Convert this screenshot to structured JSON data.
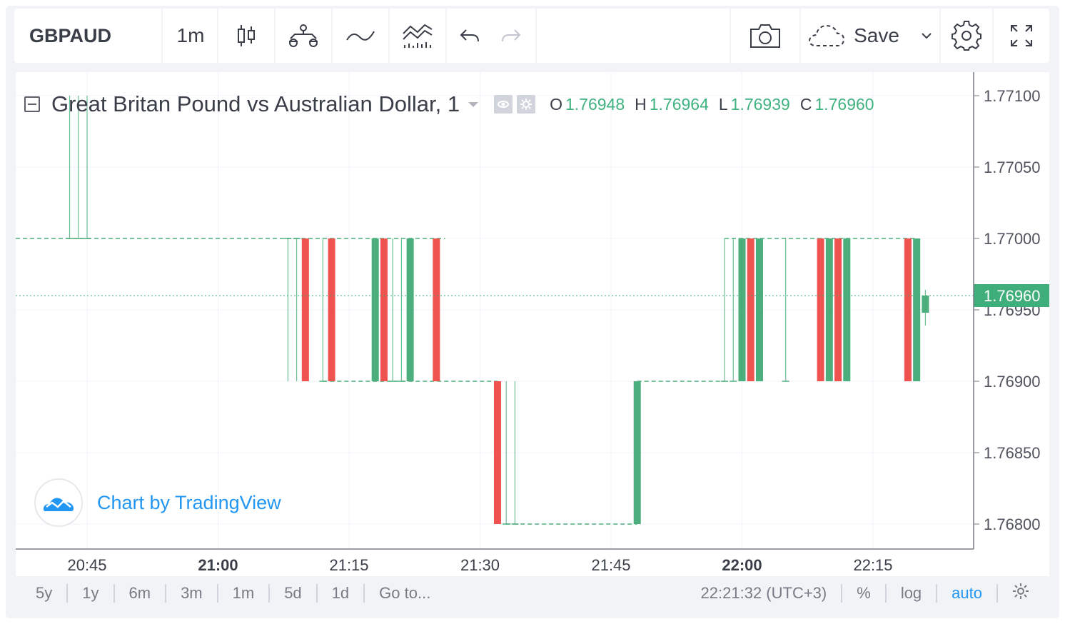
{
  "toolbar": {
    "symbol": "GBPAUD",
    "interval": "1m",
    "save_label": "Save",
    "icons": [
      "bar-style-icon",
      "compare-icon",
      "indicators-icon",
      "templates-icon",
      "undo-icon",
      "redo-icon",
      "snapshot-icon",
      "cloud-save-icon",
      "chevron-down-icon",
      "settings-icon",
      "fullscreen-icon"
    ]
  },
  "legend": {
    "title": "Great Britan Pound vs Australian Dollar, 1",
    "o_label": "O",
    "o_value": "1.76948",
    "h_label": "H",
    "h_value": "1.76964",
    "l_label": "L",
    "l_value": "1.76939",
    "c_label": "C",
    "c_value": "1.76960"
  },
  "watermark": {
    "text": "Chart by TradingView"
  },
  "bottom_bar": {
    "ranges": [
      "5y",
      "1y",
      "6m",
      "3m",
      "1m",
      "5d",
      "1d"
    ],
    "goto": "Go to...",
    "time": "22:21:32 (UTC+3)",
    "percent": "%",
    "log": "log",
    "auto": "auto"
  },
  "colors": {
    "up": "#4cae7c",
    "down": "#ef5350",
    "accent": "#2196f3",
    "price_tag": "#3fae7a"
  },
  "chart_data": {
    "type": "candlestick",
    "title": "Great Britan Pound vs Australian Dollar, 1",
    "ylim": [
      1.76775,
      1.77118
    ],
    "y_ticks": [
      "1.77100",
      "1.77050",
      "1.77000",
      "1.76950",
      "1.76900",
      "1.76850",
      "1.76800"
    ],
    "x_ticks": [
      {
        "label": "20:45",
        "bold": false,
        "t": 20.75
      },
      {
        "label": "21:00",
        "bold": true,
        "t": 21.0
      },
      {
        "label": "21:15",
        "bold": false,
        "t": 21.25
      },
      {
        "label": "21:30",
        "bold": false,
        "t": 21.5
      },
      {
        "label": "21:45",
        "bold": false,
        "t": 21.75
      },
      {
        "label": "22:00",
        "bold": true,
        "t": 22.0
      },
      {
        "label": "22:15",
        "bold": false,
        "t": 22.25
      }
    ],
    "last_price": "1.76960",
    "candles": [
      {
        "time": "20:43",
        "open": 1.77,
        "high": 1.771,
        "low": 1.77,
        "close": 1.77
      },
      {
        "time": "20:44",
        "open": 1.77,
        "high": 1.771,
        "low": 1.77,
        "close": 1.77
      },
      {
        "time": "20:45",
        "open": 1.77,
        "high": 1.771,
        "low": 1.77,
        "close": 1.77
      },
      {
        "time": "21:08",
        "open": 1.77,
        "high": 1.77,
        "low": 1.769,
        "close": 1.77
      },
      {
        "time": "21:09",
        "open": 1.77,
        "high": 1.77,
        "low": 1.769,
        "close": 1.77
      },
      {
        "time": "21:10",
        "open": 1.77,
        "high": 1.77,
        "low": 1.769,
        "close": 1.769
      },
      {
        "time": "21:12",
        "open": 1.769,
        "high": 1.77,
        "low": 1.769,
        "close": 1.769
      },
      {
        "time": "21:13",
        "open": 1.77,
        "high": 1.77,
        "low": 1.769,
        "close": 1.769
      },
      {
        "time": "21:18",
        "open": 1.769,
        "high": 1.77,
        "low": 1.769,
        "close": 1.77
      },
      {
        "time": "21:19",
        "open": 1.77,
        "high": 1.77,
        "low": 1.769,
        "close": 1.769
      },
      {
        "time": "21:20",
        "open": 1.769,
        "high": 1.77,
        "low": 1.769,
        "close": 1.769
      },
      {
        "time": "21:21",
        "open": 1.769,
        "high": 1.77,
        "low": 1.769,
        "close": 1.769
      },
      {
        "time": "21:22",
        "open": 1.769,
        "high": 1.77,
        "low": 1.769,
        "close": 1.77
      },
      {
        "time": "21:25",
        "open": 1.77,
        "high": 1.77,
        "low": 1.769,
        "close": 1.769
      },
      {
        "time": "21:32",
        "open": 1.769,
        "high": 1.769,
        "low": 1.768,
        "close": 1.768
      },
      {
        "time": "21:33",
        "open": 1.768,
        "high": 1.769,
        "low": 1.768,
        "close": 1.768
      },
      {
        "time": "21:34",
        "open": 1.768,
        "high": 1.769,
        "low": 1.768,
        "close": 1.768
      },
      {
        "time": "21:48",
        "open": 1.768,
        "high": 1.769,
        "low": 1.768,
        "close": 1.769
      },
      {
        "time": "21:58",
        "open": 1.769,
        "high": 1.77,
        "low": 1.769,
        "close": 1.769
      },
      {
        "time": "21:59",
        "open": 1.769,
        "high": 1.77,
        "low": 1.769,
        "close": 1.769
      },
      {
        "time": "22:00",
        "open": 1.769,
        "high": 1.77,
        "low": 1.769,
        "close": 1.77
      },
      {
        "time": "22:01",
        "open": 1.77,
        "high": 1.77,
        "low": 1.769,
        "close": 1.769
      },
      {
        "time": "22:02",
        "open": 1.769,
        "high": 1.77,
        "low": 1.769,
        "close": 1.77
      },
      {
        "time": "22:05",
        "open": 1.769,
        "high": 1.77,
        "low": 1.769,
        "close": 1.769
      },
      {
        "time": "22:09",
        "open": 1.77,
        "high": 1.77,
        "low": 1.769,
        "close": 1.769
      },
      {
        "time": "22:10",
        "open": 1.769,
        "high": 1.77,
        "low": 1.769,
        "close": 1.77
      },
      {
        "time": "22:11",
        "open": 1.77,
        "high": 1.77,
        "low": 1.769,
        "close": 1.769
      },
      {
        "time": "22:12",
        "open": 1.769,
        "high": 1.77,
        "low": 1.769,
        "close": 1.77
      },
      {
        "time": "22:19",
        "open": 1.77,
        "high": 1.77,
        "low": 1.769,
        "close": 1.769
      },
      {
        "time": "22:20",
        "open": 1.769,
        "high": 1.77,
        "low": 1.769,
        "close": 1.77
      },
      {
        "time": "22:21",
        "open": 1.76948,
        "high": 1.76964,
        "low": 1.76939,
        "close": 1.7696
      }
    ],
    "dashed_levels": [
      {
        "price": 1.77,
        "from": "20:38",
        "to": "21:26"
      },
      {
        "price": 1.769,
        "from": "21:12",
        "to": "21:32"
      },
      {
        "price": 1.768,
        "from": "21:33",
        "to": "21:48"
      },
      {
        "price": 1.769,
        "from": "21:48",
        "to": "21:58"
      },
      {
        "price": 1.77,
        "from": "21:58",
        "to": "22:20"
      }
    ]
  }
}
